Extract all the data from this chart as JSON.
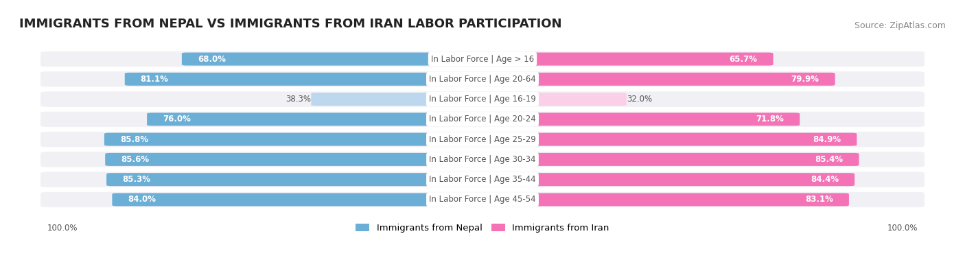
{
  "title": "IMMIGRANTS FROM NEPAL VS IMMIGRANTS FROM IRAN LABOR PARTICIPATION",
  "source": "Source: ZipAtlas.com",
  "categories": [
    "In Labor Force | Age > 16",
    "In Labor Force | Age 20-64",
    "In Labor Force | Age 16-19",
    "In Labor Force | Age 20-24",
    "In Labor Force | Age 25-29",
    "In Labor Force | Age 30-34",
    "In Labor Force | Age 35-44",
    "In Labor Force | Age 45-54"
  ],
  "nepal_values": [
    68.0,
    81.1,
    38.3,
    76.0,
    85.8,
    85.6,
    85.3,
    84.0
  ],
  "iran_values": [
    65.7,
    79.9,
    32.0,
    71.8,
    84.9,
    85.4,
    84.4,
    83.1
  ],
  "nepal_color": "#6BAED6",
  "nepal_color_light": "#BDD7EE",
  "iran_color": "#F472B6",
  "iran_color_light": "#FBCFE8",
  "row_bg_color": "#F0F0F5",
  "max_val": 100.0,
  "legend_nepal": "Immigrants from Nepal",
  "legend_iran": "Immigrants from Iran",
  "center_label_color": "#555555",
  "value_label_dark_color": "#ffffff",
  "value_label_light_color": "#555555",
  "title_fontsize": 13,
  "source_fontsize": 9,
  "bar_fontsize": 8.5,
  "cat_fontsize": 8.5
}
